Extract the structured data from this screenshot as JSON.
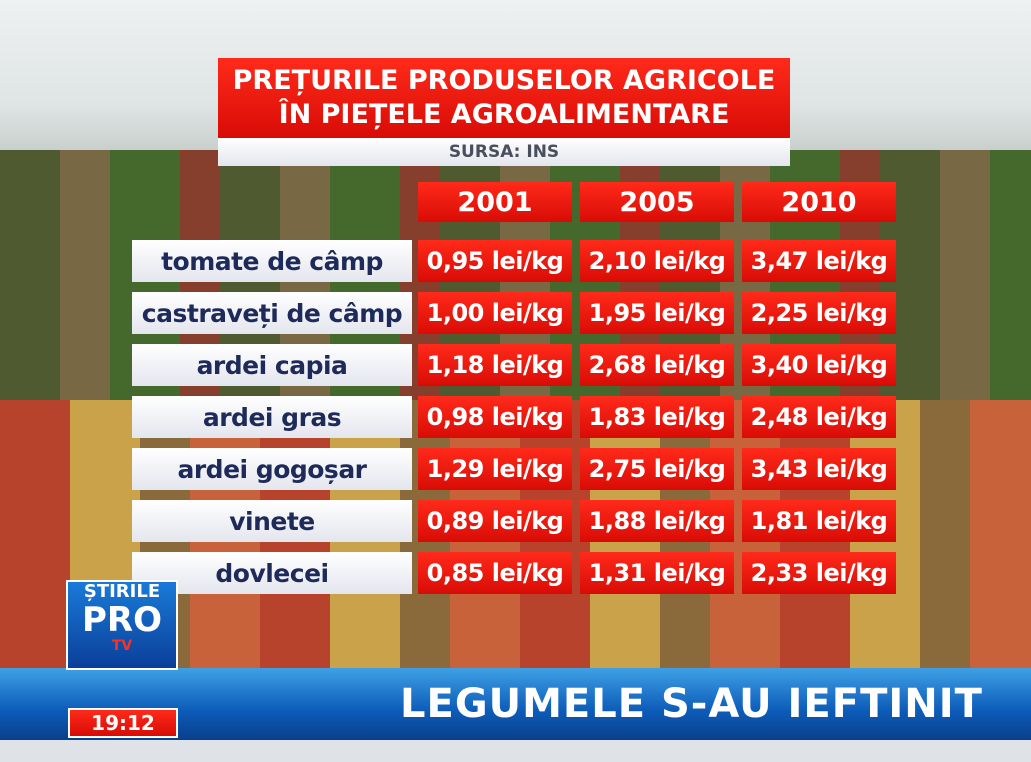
{
  "header": {
    "title_lines": [
      "PREȚURILE PRODUSELOR AGRICOLE",
      "ÎN PIEȚELE AGROALIMENTARE"
    ],
    "source": "SURSA: INS"
  },
  "table": {
    "columns": [
      "2001",
      "2005",
      "2010"
    ],
    "rows": [
      {
        "label": "tomate de câmp",
        "values": [
          "0,95 lei/kg",
          "2,10 lei/kg",
          "3,47 lei/kg"
        ]
      },
      {
        "label": "castraveți de câmp",
        "values": [
          "1,00 lei/kg",
          "1,95 lei/kg",
          "2,25 lei/kg"
        ]
      },
      {
        "label": "ardei capia",
        "values": [
          "1,18 lei/kg",
          "2,68 lei/kg",
          "3,40 lei/kg"
        ]
      },
      {
        "label": "ardei gras",
        "values": [
          "0,98 lei/kg",
          "1,83 lei/kg",
          "2,48 lei/kg"
        ]
      },
      {
        "label": "ardei gogoșar",
        "values": [
          "1,29 lei/kg",
          "2,75 lei/kg",
          "3,43 lei/kg"
        ]
      },
      {
        "label": "vinete",
        "values": [
          "0,89 lei/kg",
          "1,88 lei/kg",
          "1,81 lei/kg"
        ]
      },
      {
        "label": "dovlecei",
        "values": [
          "0,85 lei/kg",
          "1,31 lei/kg",
          "2,33 lei/kg"
        ]
      }
    ]
  },
  "logo": {
    "line1": "ȘTIRILE",
    "line2": "PRO",
    "line3": "TV"
  },
  "clock": "19:12",
  "ticker": "LEGUMELE S-AU IEFTINIT"
}
